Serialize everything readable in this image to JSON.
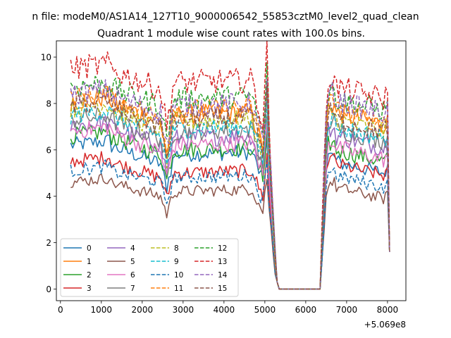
{
  "chart_data": {
    "type": "line",
    "suptitle": "n file: modeM0/AS1A14_127T10_9000006542_55853cztM0_level2_quad_clean",
    "title": "Quadrant 1 module wise count rates with 100.0s bins.",
    "xlabel": "",
    "ylabel": "",
    "x_offset_label": "+5.069e8",
    "xlim": [
      -100,
      8450
    ],
    "ylim": [
      -0.5,
      10.7
    ],
    "xticks": [
      0,
      1000,
      2000,
      3000,
      4000,
      5000,
      6000,
      7000,
      8000
    ],
    "yticks": [
      0,
      2,
      4,
      6,
      8,
      10
    ],
    "grid": false,
    "legend_position": "lower-left",
    "x_segments": [
      [
        250,
        5050
      ],
      [
        5150,
        6350
      ],
      [
        6450,
        8050
      ]
    ],
    "series": [
      {
        "name": "0",
        "color": "#1f77b4",
        "style": "solid",
        "base": 5.6,
        "g": [
          6.2,
          5.4,
          5.8,
          5.5
        ]
      },
      {
        "name": "1",
        "color": "#ff7f0e",
        "style": "solid",
        "base": 7.6,
        "g": [
          8.1,
          7.2,
          7.5,
          7.6
        ]
      },
      {
        "name": "2",
        "color": "#2ca02c",
        "style": "solid",
        "base": 6.1,
        "g": [
          6.6,
          5.8,
          6.0,
          6.0
        ]
      },
      {
        "name": "3",
        "color": "#d62728",
        "style": "solid",
        "base": 5.1,
        "g": [
          5.5,
          4.8,
          5.0,
          5.4
        ]
      },
      {
        "name": "4",
        "color": "#9467bd",
        "style": "solid",
        "base": 6.6,
        "g": [
          7.0,
          6.2,
          6.5,
          6.6
        ]
      },
      {
        "name": "5",
        "color": "#8c564b",
        "style": "solid",
        "base": 4.3,
        "g": [
          4.6,
          4.0,
          4.2,
          4.4
        ]
      },
      {
        "name": "6",
        "color": "#e377c2",
        "style": "solid",
        "base": 6.3,
        "g": [
          6.8,
          5.9,
          6.2,
          6.1
        ]
      },
      {
        "name": "7",
        "color": "#7f7f7f",
        "style": "solid",
        "base": 6.9,
        "g": [
          7.3,
          6.5,
          6.8,
          6.9
        ]
      },
      {
        "name": "8",
        "color": "#bcbd22",
        "style": "dashed",
        "base": 7.3,
        "g": [
          7.8,
          6.9,
          7.2,
          7.3
        ]
      },
      {
        "name": "9",
        "color": "#17becf",
        "style": "dashed",
        "base": 7.0,
        "g": [
          7.5,
          6.6,
          6.9,
          7.0
        ]
      },
      {
        "name": "10",
        "color": "#1f77b4",
        "style": "dashed",
        "base": 4.9,
        "g": [
          5.1,
          4.6,
          4.8,
          4.9
        ]
      },
      {
        "name": "11",
        "color": "#ff7f0e",
        "style": "dashed",
        "base": 7.8,
        "g": [
          8.2,
          7.4,
          7.7,
          7.7
        ]
      },
      {
        "name": "12",
        "color": "#2ca02c",
        "style": "dashed",
        "base": 8.3,
        "g": [
          8.7,
          7.9,
          8.2,
          8.2
        ]
      },
      {
        "name": "13",
        "color": "#d62728",
        "style": "dashed",
        "base": 9.0,
        "g": [
          9.5,
          8.6,
          8.9,
          8.7
        ]
      },
      {
        "name": "14",
        "color": "#9467bd",
        "style": "dashed",
        "base": 8.1,
        "g": [
          8.4,
          7.6,
          7.9,
          8.1
        ]
      },
      {
        "name": "15",
        "color": "#8c564b",
        "style": "dashed",
        "base": 7.4,
        "g": [
          7.9,
          7.0,
          7.3,
          7.3
        ]
      }
    ]
  }
}
